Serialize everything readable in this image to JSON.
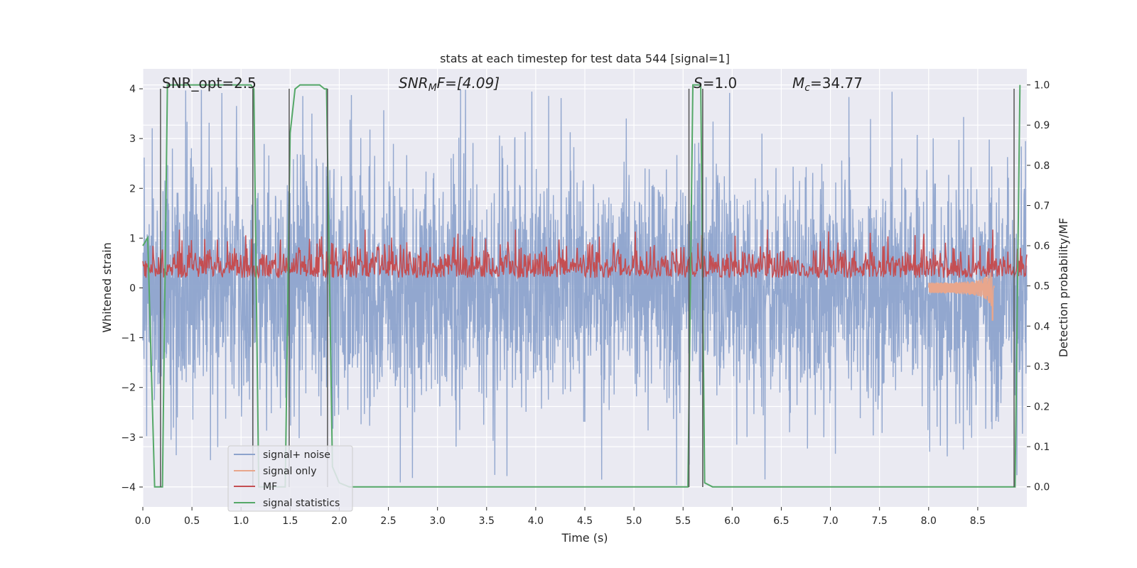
{
  "chart_data": {
    "type": "line",
    "title": "stats at each timestep for test data 544 [signal=1]",
    "xlabel": "Time (s)",
    "ylabel": "Whitened strain",
    "y2label": "Detection probability/MF",
    "xlim": [
      0.0,
      9.0
    ],
    "ylim": [
      -4.4,
      4.4
    ],
    "y2lim": [
      -0.05,
      1.04
    ],
    "xticks": [
      "0.0",
      "0.5",
      "1.0",
      "1.5",
      "2.0",
      "2.5",
      "3.0",
      "3.5",
      "4.0",
      "4.5",
      "5.0",
      "5.5",
      "6.0",
      "6.5",
      "7.0",
      "7.5",
      "8.0",
      "8.5"
    ],
    "yticks": [
      "4",
      "3",
      "2",
      "1",
      "0",
      "−1",
      "−2",
      "−3",
      "−4"
    ],
    "y2ticks": [
      "1.0",
      "0.9",
      "0.8",
      "0.7",
      "0.6",
      "0.5",
      "0.4",
      "0.3",
      "0.2",
      "0.1",
      "0.0"
    ],
    "grid": true,
    "legend_position": "lower-left",
    "annotations": {
      "snr_opt": "SNR_opt=2.5",
      "snr_mf_prefix": "SNR",
      "snr_mf_sub": "M",
      "snr_mf_suffix": "F=[4.09]",
      "s_prefix": "S",
      "s_suffix": "=1.0",
      "mc_prefix": "M",
      "mc_sub": "c",
      "mc_suffix": "=34.77"
    },
    "series": [
      {
        "name": "signal+ noise",
        "color": "#8da3cc",
        "kind": "noise",
        "amplitude_typical": 2.0,
        "amplitude_max": 4.0
      },
      {
        "name": "signal only",
        "color": "#e8a68c",
        "kind": "chirp",
        "merger_time": 8.65,
        "peak": -0.65
      },
      {
        "name": "MF",
        "color": "#c44e52",
        "kind": "mf",
        "typical_range": [
          0.05,
          0.6
        ]
      },
      {
        "name": "signal statistics",
        "color": "#55a868",
        "kind": "step",
        "x": [
          0.0,
          0.05,
          0.12,
          0.2,
          0.25,
          0.3,
          1.1,
          1.13,
          1.18,
          1.45,
          1.5,
          1.55,
          1.6,
          1.8,
          1.85,
          1.87,
          1.93,
          2.0,
          2.1,
          5.55,
          5.6,
          5.65,
          5.68,
          5.72,
          5.8,
          8.88,
          8.93
        ],
        "y": [
          0.6,
          0.62,
          0.0,
          0.0,
          1.0,
          1.0,
          1.0,
          0.99,
          0.0,
          0.0,
          0.88,
          0.99,
          1.0,
          1.0,
          0.99,
          0.99,
          0.05,
          0.01,
          0.0,
          0.0,
          1.0,
          1.0,
          1.0,
          0.01,
          0.0,
          0.0,
          1.0
        ]
      }
    ],
    "vertical_markers": [
      0.18,
      1.12,
      1.49,
      1.88,
      5.56,
      5.7,
      8.87
    ]
  }
}
